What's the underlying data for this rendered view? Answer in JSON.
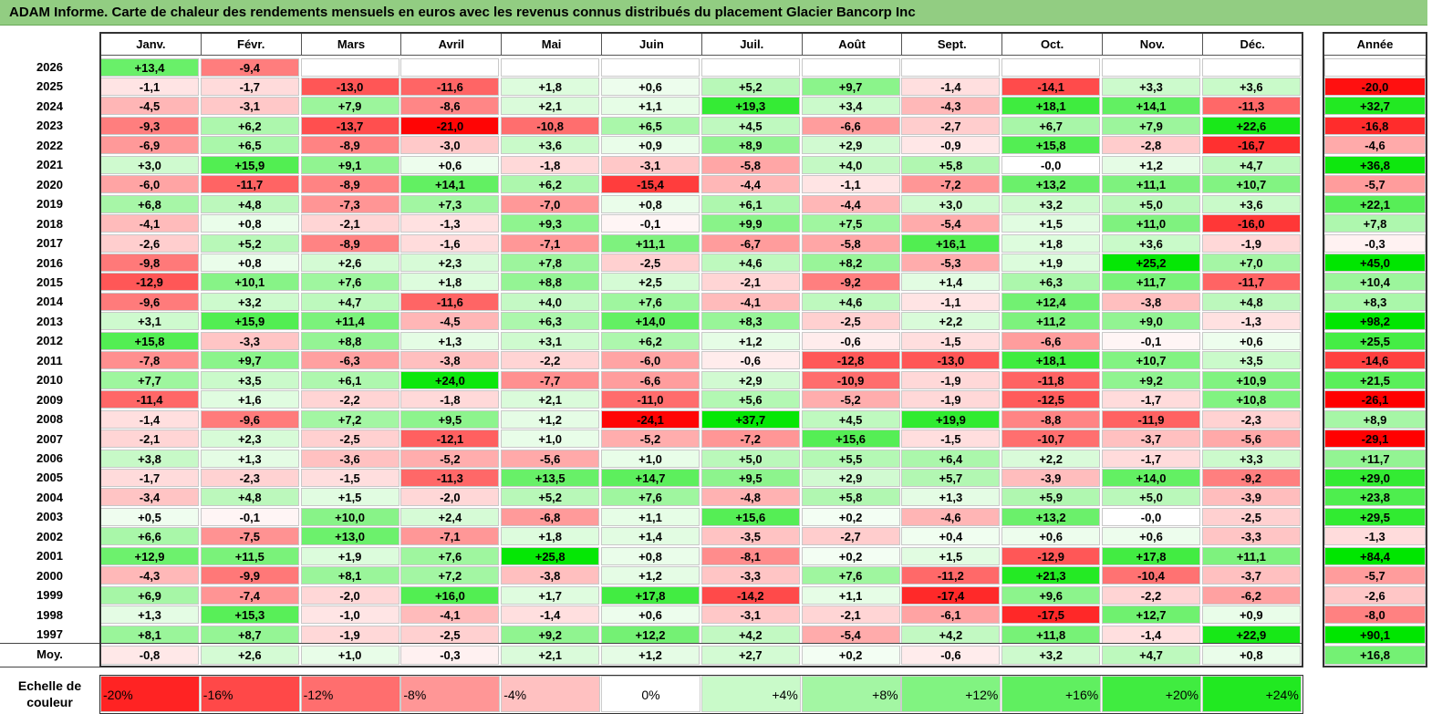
{
  "title": "ADAM Informe. Carte de chaleur des rendements mensuels en euros avec les revenus connus distribués du placement Glacier Bancorp Inc",
  "chart_data": {
    "type": "heatmap",
    "months": [
      "Janv.",
      "Févr.",
      "Mars",
      "Avril",
      "Mai",
      "Juin",
      "Juil.",
      "Août",
      "Sept.",
      "Oct.",
      "Nov.",
      "Déc."
    ],
    "year_header": "Année",
    "rows": [
      {
        "year": "2026",
        "values": [
          "+13,4",
          "-9,4",
          "",
          "",
          "",
          "",
          "",
          "",
          "",
          "",
          "",
          ""
        ],
        "annual": ""
      },
      {
        "year": "2025",
        "values": [
          "-1,1",
          "-1,7",
          "-13,0",
          "-11,6",
          "+1,8",
          "+0,6",
          "+5,2",
          "+9,7",
          "-1,4",
          "-14,1",
          "+3,3",
          "+3,6"
        ],
        "annual": "-20,0"
      },
      {
        "year": "2024",
        "values": [
          "-4,5",
          "-3,1",
          "+7,9",
          "-8,6",
          "+2,1",
          "+1,1",
          "+19,3",
          "+3,4",
          "-4,3",
          "+18,1",
          "+14,1",
          "-11,3"
        ],
        "annual": "+32,7"
      },
      {
        "year": "2023",
        "values": [
          "-9,3",
          "+6,2",
          "-13,7",
          "-21,0",
          "-10,8",
          "+6,5",
          "+4,5",
          "-6,6",
          "-2,7",
          "+6,7",
          "+7,9",
          "+22,6"
        ],
        "annual": "-16,8"
      },
      {
        "year": "2022",
        "values": [
          "-6,9",
          "+6,5",
          "-8,9",
          "-3,0",
          "+3,6",
          "+0,9",
          "+8,9",
          "+2,9",
          "-0,9",
          "+15,8",
          "-2,8",
          "-16,7"
        ],
        "annual": "-4,6"
      },
      {
        "year": "2021",
        "values": [
          "+3,0",
          "+15,9",
          "+9,1",
          "+0,6",
          "-1,8",
          "-3,1",
          "-5,8",
          "+4,0",
          "+5,8",
          "-0,0",
          "+1,2",
          "+4,7"
        ],
        "annual": "+36,8"
      },
      {
        "year": "2020",
        "values": [
          "-6,0",
          "-11,7",
          "-8,9",
          "+14,1",
          "+6,2",
          "-15,4",
          "-4,4",
          "-1,1",
          "-7,2",
          "+13,2",
          "+11,1",
          "+10,7"
        ],
        "annual": "-5,7"
      },
      {
        "year": "2019",
        "values": [
          "+6,8",
          "+4,8",
          "-7,3",
          "+7,3",
          "-7,0",
          "+0,8",
          "+6,1",
          "-4,4",
          "+3,0",
          "+3,2",
          "+5,0",
          "+3,6"
        ],
        "annual": "+22,1"
      },
      {
        "year": "2018",
        "values": [
          "-4,1",
          "+0,8",
          "-2,1",
          "-1,3",
          "+9,3",
          "-0,1",
          "+9,9",
          "+7,5",
          "-5,4",
          "+1,5",
          "+11,0",
          "-16,0"
        ],
        "annual": "+7,8"
      },
      {
        "year": "2017",
        "values": [
          "-2,6",
          "+5,2",
          "-8,9",
          "-1,6",
          "-7,1",
          "+11,1",
          "-6,7",
          "-5,8",
          "+16,1",
          "+1,8",
          "+3,6",
          "-1,9"
        ],
        "annual": "-0,3"
      },
      {
        "year": "2016",
        "values": [
          "-9,8",
          "+0,8",
          "+2,6",
          "+2,3",
          "+7,8",
          "-2,5",
          "+4,6",
          "+8,2",
          "-5,3",
          "+1,9",
          "+25,2",
          "+7,0"
        ],
        "annual": "+45,0"
      },
      {
        "year": "2015",
        "values": [
          "-12,9",
          "+10,1",
          "+7,6",
          "+1,8",
          "+8,8",
          "+2,5",
          "-2,1",
          "-9,2",
          "+1,4",
          "+6,3",
          "+11,7",
          "-11,7"
        ],
        "annual": "+10,4"
      },
      {
        "year": "2014",
        "values": [
          "-9,6",
          "+3,2",
          "+4,7",
          "-11,6",
          "+4,0",
          "+7,6",
          "-4,1",
          "+4,6",
          "-1,1",
          "+12,4",
          "-3,8",
          "+4,8"
        ],
        "annual": "+8,3"
      },
      {
        "year": "2013",
        "values": [
          "+3,1",
          "+15,9",
          "+11,4",
          "-4,5",
          "+6,3",
          "+14,0",
          "+8,3",
          "-2,5",
          "+2,2",
          "+11,2",
          "+9,0",
          "-1,3"
        ],
        "annual": "+98,2"
      },
      {
        "year": "2012",
        "values": [
          "+15,8",
          "-3,3",
          "+8,8",
          "+1,3",
          "+3,1",
          "+6,2",
          "+1,2",
          "-0,6",
          "-1,5",
          "-6,6",
          "-0,1",
          "+0,6"
        ],
        "annual": "+25,5"
      },
      {
        "year": "2011",
        "values": [
          "-7,8",
          "+9,7",
          "-6,3",
          "-3,8",
          "-2,2",
          "-6,0",
          "-0,6",
          "-12,8",
          "-13,0",
          "+18,1",
          "+10,7",
          "+3,5"
        ],
        "annual": "-14,6"
      },
      {
        "year": "2010",
        "values": [
          "+7,7",
          "+3,5",
          "+6,1",
          "+24,0",
          "-7,7",
          "-6,6",
          "+2,9",
          "-10,9",
          "-1,9",
          "-11,8",
          "+9,2",
          "+10,9"
        ],
        "annual": "+21,5"
      },
      {
        "year": "2009",
        "values": [
          "-11,4",
          "+1,6",
          "-2,2",
          "-1,8",
          "+2,1",
          "-11,0",
          "+5,6",
          "-5,2",
          "-1,9",
          "-12,5",
          "-1,7",
          "+10,8"
        ],
        "annual": "-26,1"
      },
      {
        "year": "2008",
        "values": [
          "-1,4",
          "-9,6",
          "+7,2",
          "+9,5",
          "+1,2",
          "-24,1",
          "+37,7",
          "+4,5",
          "+19,9",
          "-8,8",
          "-11,9",
          "-2,3"
        ],
        "annual": "+8,9"
      },
      {
        "year": "2007",
        "values": [
          "-2,1",
          "+2,3",
          "-2,5",
          "-12,1",
          "+1,0",
          "-5,2",
          "-7,2",
          "+15,6",
          "-1,5",
          "-10,7",
          "-3,7",
          "-5,6"
        ],
        "annual": "-29,1"
      },
      {
        "year": "2006",
        "values": [
          "+3,8",
          "+1,3",
          "-3,6",
          "-5,2",
          "-5,6",
          "+1,0",
          "+5,0",
          "+5,5",
          "+6,4",
          "+2,2",
          "-1,7",
          "+3,3"
        ],
        "annual": "+11,7"
      },
      {
        "year": "2005",
        "values": [
          "-1,7",
          "-2,3",
          "-1,5",
          "-11,3",
          "+13,5",
          "+14,7",
          "+9,5",
          "+2,9",
          "+5,7",
          "-3,9",
          "+14,0",
          "-9,2"
        ],
        "annual": "+29,0"
      },
      {
        "year": "2004",
        "values": [
          "-3,4",
          "+4,8",
          "+1,5",
          "-2,0",
          "+5,2",
          "+7,6",
          "-4,8",
          "+5,8",
          "+1,3",
          "+5,9",
          "+5,0",
          "-3,9"
        ],
        "annual": "+23,8"
      },
      {
        "year": "2003",
        "values": [
          "+0,5",
          "-0,1",
          "+10,0",
          "+2,4",
          "-6,8",
          "+1,1",
          "+15,6",
          "+0,2",
          "-4,6",
          "+13,2",
          "-0,0",
          "-2,5"
        ],
        "annual": "+29,5"
      },
      {
        "year": "2002",
        "values": [
          "+6,6",
          "-7,5",
          "+13,0",
          "-7,1",
          "+1,8",
          "+1,4",
          "-3,5",
          "-2,7",
          "+0,4",
          "+0,6",
          "+0,6",
          "-3,3"
        ],
        "annual": "-1,3"
      },
      {
        "year": "2001",
        "values": [
          "+12,9",
          "+11,5",
          "+1,9",
          "+7,6",
          "+25,8",
          "+0,8",
          "-8,1",
          "+0,2",
          "+1,5",
          "-12,9",
          "+17,8",
          "+11,1"
        ],
        "annual": "+84,4"
      },
      {
        "year": "2000",
        "values": [
          "-4,3",
          "-9,9",
          "+8,1",
          "+7,2",
          "-3,8",
          "+1,2",
          "-3,3",
          "+7,6",
          "-11,2",
          "+21,3",
          "-10,4",
          "-3,7"
        ],
        "annual": "-5,7"
      },
      {
        "year": "1999",
        "values": [
          "+6,9",
          "-7,4",
          "-2,0",
          "+16,0",
          "+1,7",
          "+17,8",
          "-14,2",
          "+1,1",
          "-17,4",
          "+9,6",
          "-2,2",
          "-6,2"
        ],
        "annual": "-2,6"
      },
      {
        "year": "1998",
        "values": [
          "+1,3",
          "+15,3",
          "-1,0",
          "-4,1",
          "-1,4",
          "+0,6",
          "-3,1",
          "-2,1",
          "-6,1",
          "-17,5",
          "+12,7",
          "+0,9"
        ],
        "annual": "-8,0"
      },
      {
        "year": "1997",
        "values": [
          "+8,1",
          "+8,7",
          "-1,9",
          "-2,5",
          "+9,2",
          "+12,2",
          "+4,2",
          "-5,4",
          "+4,2",
          "+11,8",
          "-1,4",
          "+22,9"
        ],
        "annual": "+90,1"
      }
    ],
    "average": {
      "label": "Moy.",
      "values": [
        "-0,8",
        "+2,6",
        "+1,0",
        "-0,3",
        "+2,1",
        "+1,2",
        "+2,7",
        "+0,2",
        "-0,6",
        "+3,2",
        "+4,7",
        "+0,8"
      ],
      "annual": "+16,8"
    },
    "scale": {
      "label_line1": "Echelle de",
      "label_line2": "couleur",
      "steps": [
        "-20%",
        "-16%",
        "-12%",
        "-8%",
        "-4%",
        "0%",
        "+4%",
        "+8%",
        "+12%",
        "+16%",
        "+20%",
        "+24%"
      ],
      "step_values": [
        -20,
        -16,
        -12,
        -8,
        -4,
        0,
        4,
        8,
        12,
        16,
        20,
        24
      ]
    },
    "colors": {
      "negative": "#ff0000",
      "positive": "#00ee00",
      "neutral": "#ffffff"
    }
  }
}
